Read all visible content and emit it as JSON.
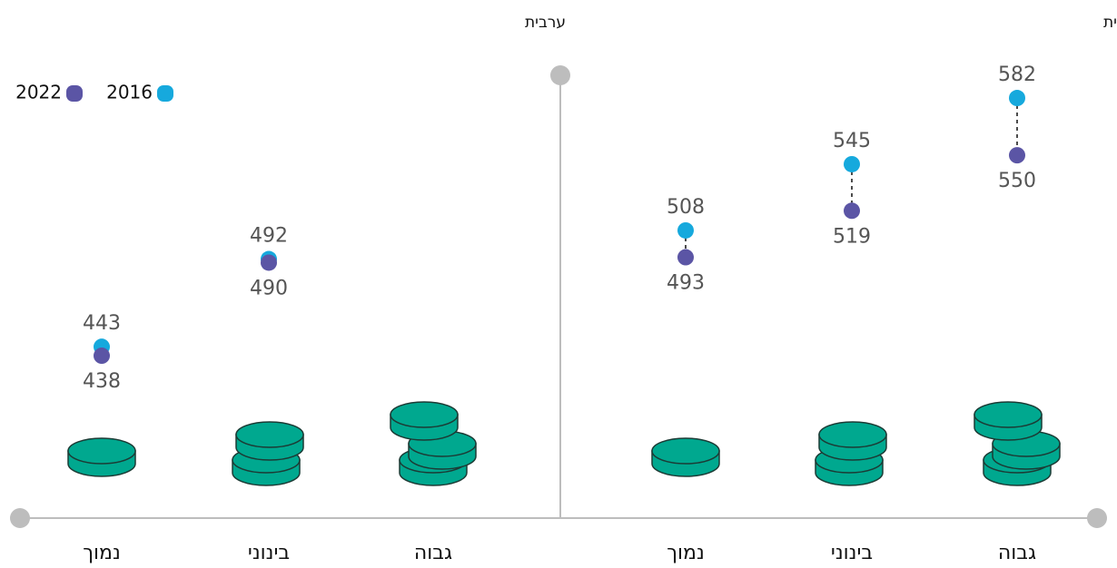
{
  "chart_data": [
    {
      "type": "dumbbell",
      "title": "עברית",
      "categories": [
        "גבוה",
        "בינוני",
        "נמוך"
      ],
      "series": [
        {
          "name": "2016",
          "color": "#16a9dd",
          "values": [
            582,
            545,
            508
          ]
        },
        {
          "name": "2022",
          "color": "#5b55a5",
          "values": [
            550,
            519,
            493
          ]
        }
      ],
      "ylim": [
        400,
        600
      ]
    },
    {
      "type": "dumbbell",
      "title": "ערבית",
      "categories": [
        "גבוה",
        "בינוני",
        "נמוך"
      ],
      "series": [
        {
          "name": "2016",
          "color": "#16a9dd",
          "values": [
            null,
            492,
            443
          ]
        },
        {
          "name": "2022",
          "color": "#5b55a5",
          "values": [
            null,
            490,
            438
          ]
        }
      ],
      "ylim": [
        400,
        600
      ]
    }
  ]
}
